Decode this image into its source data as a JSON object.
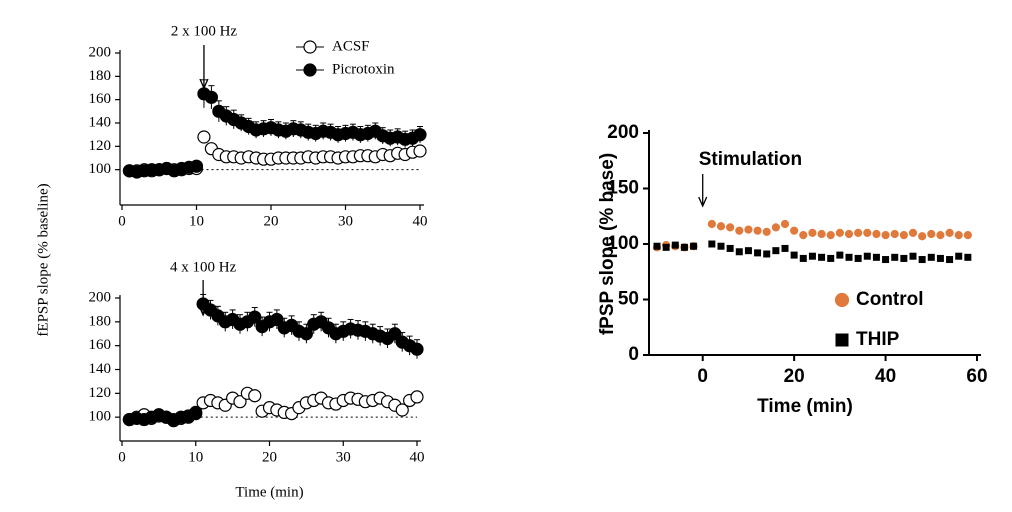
{
  "chart_data": [
    {
      "type": "scatter",
      "y_label": "fEPSP slope (% baseline)",
      "annotation": {
        "text": "2 x 100 Hz",
        "x": 11
      },
      "reference_line": 100,
      "xlim": [
        0,
        40
      ],
      "xticks": [
        0,
        10,
        20,
        30,
        40
      ],
      "ylim": [
        80,
        200
      ],
      "yticks": [
        100,
        120,
        140,
        160,
        180,
        200
      ],
      "legend": "upper right",
      "x": [
        1,
        2,
        3,
        4,
        5,
        6,
        7,
        8,
        9,
        10,
        11,
        12,
        13,
        14,
        15,
        16,
        17,
        18,
        19,
        20,
        21,
        22,
        23,
        24,
        25,
        26,
        27,
        28,
        29,
        30,
        31,
        32,
        33,
        34,
        35,
        36,
        37,
        38,
        39,
        40
      ],
      "series": [
        {
          "name": "ACSF",
          "color": "#000000",
          "marker": "open-circle",
          "values": [
            99,
            99,
            100,
            99,
            100,
            101,
            100,
            100,
            101,
            101,
            128,
            118,
            113,
            111,
            111,
            110,
            111,
            110,
            109,
            109,
            110,
            110,
            110,
            110,
            111,
            110,
            111,
            111,
            110,
            111,
            111,
            112,
            112,
            111,
            113,
            112,
            114,
            113,
            115,
            116
          ]
        },
        {
          "name": "Picrotoxin",
          "color": "#000000",
          "marker": "circle",
          "values": [
            99,
            98,
            99,
            100,
            100,
            101,
            99,
            101,
            102,
            103,
            165,
            162,
            150,
            146,
            143,
            140,
            137,
            134,
            135,
            136,
            134,
            133,
            135,
            134,
            132,
            131,
            133,
            132,
            130,
            131,
            132,
            130,
            131,
            133,
            129,
            127,
            128,
            126,
            127,
            130
          ],
          "errors": [
            3,
            3,
            3,
            3,
            3,
            3,
            3,
            3,
            3,
            3,
            12,
            10,
            9,
            8,
            8,
            7,
            7,
            7,
            7,
            7,
            7,
            7,
            7,
            7,
            7,
            7,
            7,
            7,
            7,
            7,
            7,
            7,
            7,
            7,
            7,
            7,
            7,
            7,
            7,
            7
          ]
        }
      ]
    },
    {
      "type": "scatter",
      "x_label": "Time (min)",
      "annotation": {
        "text": "4 x 100 Hz",
        "x": 11
      },
      "reference_line": 100,
      "xlim": [
        0,
        40
      ],
      "xticks": [
        0,
        10,
        20,
        30,
        40
      ],
      "ylim": [
        80,
        200
      ],
      "yticks": [
        100,
        120,
        140,
        160,
        180,
        200
      ],
      "x": [
        1,
        2,
        3,
        4,
        5,
        6,
        7,
        8,
        9,
        10,
        11,
        12,
        13,
        14,
        15,
        16,
        17,
        18,
        19,
        20,
        21,
        22,
        23,
        24,
        25,
        26,
        27,
        28,
        29,
        30,
        31,
        32,
        33,
        34,
        35,
        36,
        37,
        38,
        39,
        40
      ],
      "series": [
        {
          "name": "ACSF",
          "color": "#000000",
          "marker": "open-circle",
          "values": [
            98,
            100,
            102,
            99,
            101,
            100,
            97,
            99,
            100,
            103,
            112,
            114,
            112,
            110,
            116,
            113,
            120,
            118,
            105,
            108,
            106,
            104,
            103,
            108,
            112,
            114,
            116,
            112,
            111,
            114,
            116,
            115,
            113,
            114,
            116,
            113,
            110,
            106,
            114,
            117
          ]
        },
        {
          "name": "Picrotoxin",
          "color": "#000000",
          "marker": "circle",
          "values": [
            98,
            99,
            98,
            100,
            102,
            100,
            98,
            100,
            101,
            104,
            195,
            190,
            185,
            180,
            182,
            178,
            180,
            184,
            176,
            180,
            182,
            175,
            177,
            172,
            170,
            178,
            180,
            175,
            170,
            172,
            174,
            173,
            172,
            170,
            168,
            166,
            170,
            163,
            160,
            157
          ],
          "errors": [
            3,
            3,
            3,
            3,
            3,
            3,
            3,
            3,
            3,
            3,
            8,
            8,
            8,
            8,
            8,
            8,
            8,
            8,
            8,
            8,
            8,
            8,
            8,
            8,
            8,
            8,
            8,
            8,
            8,
            8,
            8,
            8,
            8,
            8,
            8,
            8,
            8,
            8,
            8,
            8
          ]
        }
      ]
    },
    {
      "type": "scatter",
      "x_label": "Time (min)",
      "y_label": "fPSP slope (% base)",
      "annotation": {
        "text": "Stimulation",
        "x": 0
      },
      "xlim": [
        -10,
        60
      ],
      "xticks": [
        0,
        20,
        40,
        60
      ],
      "ylim": [
        0,
        200
      ],
      "yticks": [
        0,
        50,
        100,
        150,
        200
      ],
      "legend": "lower right",
      "x": [
        -10,
        -8,
        -6,
        -4,
        -2,
        2,
        4,
        6,
        8,
        10,
        12,
        14,
        16,
        18,
        20,
        22,
        24,
        26,
        28,
        30,
        32,
        34,
        36,
        38,
        40,
        42,
        44,
        46,
        48,
        50,
        52,
        54,
        56,
        58
      ],
      "series": [
        {
          "name": "Control",
          "color": "#e07a3c",
          "marker": "circle",
          "values": [
            97,
            99,
            98,
            97,
            98,
            118,
            116,
            115,
            112,
            113,
            112,
            111,
            115,
            118,
            112,
            108,
            110,
            109,
            108,
            110,
            109,
            110,
            110,
            109,
            108,
            109,
            108,
            110,
            107,
            109,
            108,
            110,
            108,
            108
          ]
        },
        {
          "name": "THIP",
          "color": "#000000",
          "marker": "square",
          "values": [
            98,
            97,
            99,
            97,
            98,
            100,
            98,
            96,
            93,
            94,
            92,
            91,
            94,
            96,
            90,
            87,
            89,
            88,
            87,
            90,
            88,
            87,
            89,
            88,
            86,
            88,
            87,
            89,
            86,
            88,
            87,
            86,
            89,
            88
          ]
        }
      ]
    }
  ]
}
